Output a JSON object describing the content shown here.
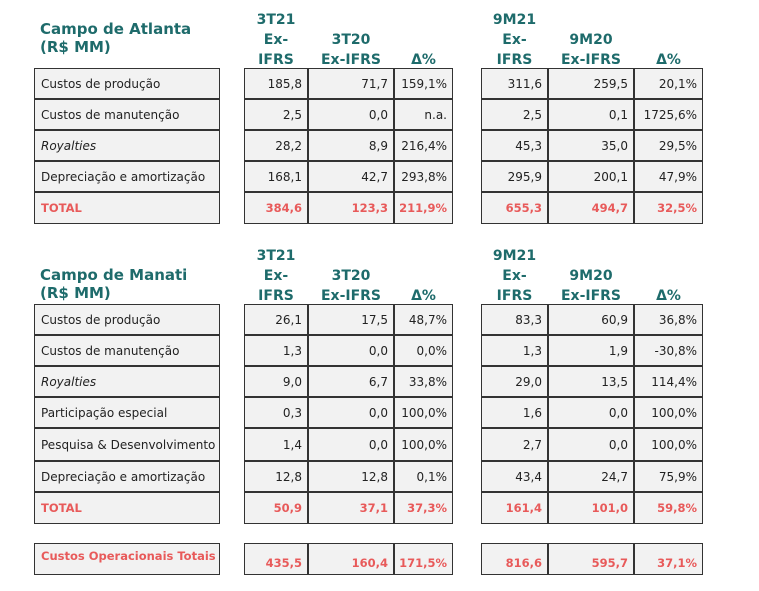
{
  "atlanta": {
    "title": "Campo de Atlanta",
    "unit": "(R$ MM)",
    "headers": [
      "3T21\nEx-\nIFRS",
      "3T20\nEx-IFRS",
      "Δ%",
      "9M21\nEx-\nIFRS",
      "9M20\nEx-IFRS",
      "Δ%"
    ],
    "rows": [
      {
        "label": "Custos de produção",
        "values": [
          "185,8",
          "71,7",
          "159,1%",
          "311,6",
          "259,5",
          "20,1%"
        ]
      },
      {
        "label": "Custos de manutenção",
        "values": [
          "2,5",
          "0,0",
          "n.a.",
          "2,5",
          "0,1",
          "1725,6%"
        ]
      },
      {
        "label": "Royalties",
        "values": [
          "28,2",
          "8,9",
          "216,4%",
          "45,3",
          "35,0",
          "29,5%"
        ]
      },
      {
        "label": "Depreciação e amortização",
        "values": [
          "168,1",
          "42,7",
          "293,8%",
          "295,9",
          "200,1",
          "47,9%"
        ]
      },
      {
        "label": "TOTAL",
        "values": [
          "384,6",
          "123,3",
          "211,9%",
          "655,3",
          "494,7",
          "32,5%"
        ]
      }
    ]
  },
  "manati": {
    "title": "Campo de Manati",
    "unit": "(R$ MM)",
    "headers": [
      "3T21\nEx-\nIFRS",
      "3T20\nEx-IFRS",
      "Δ%",
      "9M21\nEx-\nIFRS",
      "9M20\nEx-IFRS",
      "Δ%"
    ],
    "rows": [
      {
        "label": "Custos de produção",
        "values": [
          "26,1",
          "17,5",
          "48,7%",
          "83,3",
          "60,9",
          "36,8%"
        ]
      },
      {
        "label": "Custos de manutenção",
        "values": [
          "1,3",
          "0,0",
          "0,0%",
          "1,3",
          "1,9",
          "-30,8%"
        ]
      },
      {
        "label": "Royalties",
        "values": [
          "9,0",
          "6,7",
          "33,8%",
          "29,0",
          "13,5",
          "114,4%"
        ]
      },
      {
        "label": "Participação especial",
        "values": [
          "0,3",
          "0,0",
          "100,0%",
          "1,6",
          "0,0",
          "100,0%"
        ]
      },
      {
        "label": "Pesquisa & Desenvolvimento",
        "values": [
          "1,4",
          "0,0",
          "100,0%",
          "2,7",
          "0,0",
          "100,0%"
        ]
      },
      {
        "label": "Depreciação e amortização",
        "values": [
          "12,8",
          "12,8",
          "0,1%",
          "43,4",
          "24,7",
          "75,9%"
        ]
      },
      {
        "label": "TOTAL",
        "values": [
          "50,9",
          "37,1",
          "37,3%",
          "161,4",
          "101,0",
          "59,8%"
        ]
      }
    ]
  },
  "total": {
    "label": "Custos Operacionais Totais",
    "values": [
      "435,5",
      "160,4",
      "171,5%",
      "816,6",
      "595,7",
      "37,1%"
    ]
  },
  "colors": {
    "accent": "#1e6b6b",
    "highlight": "#e85a5a",
    "cell_bg": "#f2f2f2"
  }
}
